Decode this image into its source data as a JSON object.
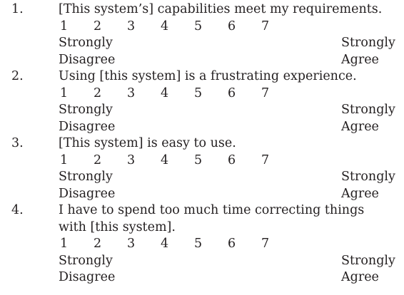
{
  "items": [
    {
      "number": "1.",
      "statement": "[This system’s] capabilities meet my requirements.",
      "scale": [
        "1",
        "2",
        "3",
        "4",
        "5",
        "6",
        "7"
      ],
      "anchor_left_1": "Strongly",
      "anchor_left_2": "Disagree",
      "anchor_right_1": "Strongly",
      "anchor_right_2": "Agree"
    },
    {
      "number": "2.",
      "statement": "Using [this system] is a frustrating experience.",
      "scale": [
        "1",
        "2",
        "3",
        "4",
        "5",
        "6",
        "7"
      ],
      "anchor_left_1": "Strongly",
      "anchor_left_2": "Disagree",
      "anchor_right_1": "Strongly",
      "anchor_right_2": "Agree"
    },
    {
      "number": "3.",
      "statement": "[This system] is easy to use.",
      "scale": [
        "1",
        "2",
        "3",
        "4",
        "5",
        "6",
        "7"
      ],
      "anchor_left_1": "Strongly",
      "anchor_left_2": "Disagree",
      "anchor_right_1": "Strongly",
      "anchor_right_2": "Agree"
    },
    {
      "number": "4.",
      "statement": "I have to spend too much time correcting things with [this system].",
      "scale": [
        "1",
        "2",
        "3",
        "4",
        "5",
        "6",
        "7"
      ],
      "anchor_left_1": "Strongly",
      "anchor_left_2": "Disagree",
      "anchor_right_1": "Strongly",
      "anchor_right_2": "Agree"
    }
  ]
}
